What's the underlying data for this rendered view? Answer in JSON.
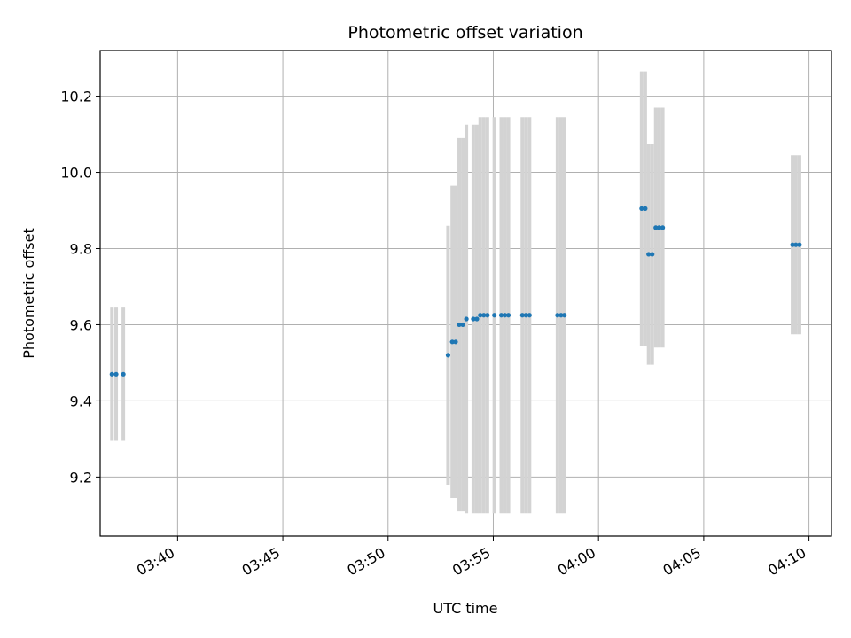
{
  "chart_data": {
    "type": "scatter",
    "title": "Photometric offset variation",
    "xlabel": "UTC time",
    "ylabel": "Photometric offset",
    "x_tick_labels": [
      "03:40",
      "03:45",
      "03:50",
      "03:55",
      "04:00",
      "04:05",
      "04:10"
    ],
    "x_ticks_minutes": [
      220,
      225,
      230,
      235,
      240,
      245,
      250
    ],
    "y_ticks": [
      9.2,
      9.4,
      9.6,
      9.8,
      10.0,
      10.2
    ],
    "y_tick_labels": [
      "9.2",
      "9.4",
      "9.6",
      "9.8",
      "10.0",
      "10.2"
    ],
    "xlim_minutes": [
      216.32,
      251.07
    ],
    "ylim": [
      9.045,
      10.32
    ],
    "grid": true,
    "point_color": "#1f77b4",
    "errorbar_color": "#d3d3d3",
    "points": [
      {
        "t": 216.88,
        "y": 9.47,
        "err": 0.175
      },
      {
        "t": 217.08,
        "y": 9.47,
        "err": 0.175
      },
      {
        "t": 217.42,
        "y": 9.47,
        "err": 0.175
      },
      {
        "t": 232.85,
        "y": 9.52,
        "err": 0.34
      },
      {
        "t": 233.05,
        "y": 9.555,
        "err": 0.41
      },
      {
        "t": 233.21,
        "y": 9.555,
        "err": 0.41
      },
      {
        "t": 233.38,
        "y": 9.6,
        "err": 0.49
      },
      {
        "t": 233.55,
        "y": 9.6,
        "err": 0.49
      },
      {
        "t": 233.72,
        "y": 9.615,
        "err": 0.51
      },
      {
        "t": 234.05,
        "y": 9.615,
        "err": 0.51
      },
      {
        "t": 234.22,
        "y": 9.615,
        "err": 0.51
      },
      {
        "t": 234.38,
        "y": 9.625,
        "err": 0.52
      },
      {
        "t": 234.55,
        "y": 9.625,
        "err": 0.52
      },
      {
        "t": 234.72,
        "y": 9.625,
        "err": 0.52
      },
      {
        "t": 235.05,
        "y": 9.625,
        "err": 0.52
      },
      {
        "t": 235.38,
        "y": 9.625,
        "err": 0.52
      },
      {
        "t": 235.55,
        "y": 9.625,
        "err": 0.52
      },
      {
        "t": 235.72,
        "y": 9.625,
        "err": 0.52
      },
      {
        "t": 236.38,
        "y": 9.625,
        "err": 0.52
      },
      {
        "t": 236.55,
        "y": 9.625,
        "err": 0.52
      },
      {
        "t": 236.72,
        "y": 9.625,
        "err": 0.52
      },
      {
        "t": 238.05,
        "y": 9.625,
        "err": 0.52
      },
      {
        "t": 238.22,
        "y": 9.625,
        "err": 0.52
      },
      {
        "t": 238.38,
        "y": 9.625,
        "err": 0.52
      },
      {
        "t": 242.05,
        "y": 9.905,
        "err": 0.36
      },
      {
        "t": 242.22,
        "y": 9.905,
        "err": 0.36
      },
      {
        "t": 242.38,
        "y": 9.785,
        "err": 0.29
      },
      {
        "t": 242.55,
        "y": 9.785,
        "err": 0.29
      },
      {
        "t": 242.72,
        "y": 9.855,
        "err": 0.315
      },
      {
        "t": 242.88,
        "y": 9.855,
        "err": 0.315
      },
      {
        "t": 243.05,
        "y": 9.855,
        "err": 0.315
      },
      {
        "t": 249.22,
        "y": 9.81,
        "err": 0.235
      },
      {
        "t": 249.38,
        "y": 9.81,
        "err": 0.235
      },
      {
        "t": 249.55,
        "y": 9.81,
        "err": 0.235
      }
    ]
  }
}
